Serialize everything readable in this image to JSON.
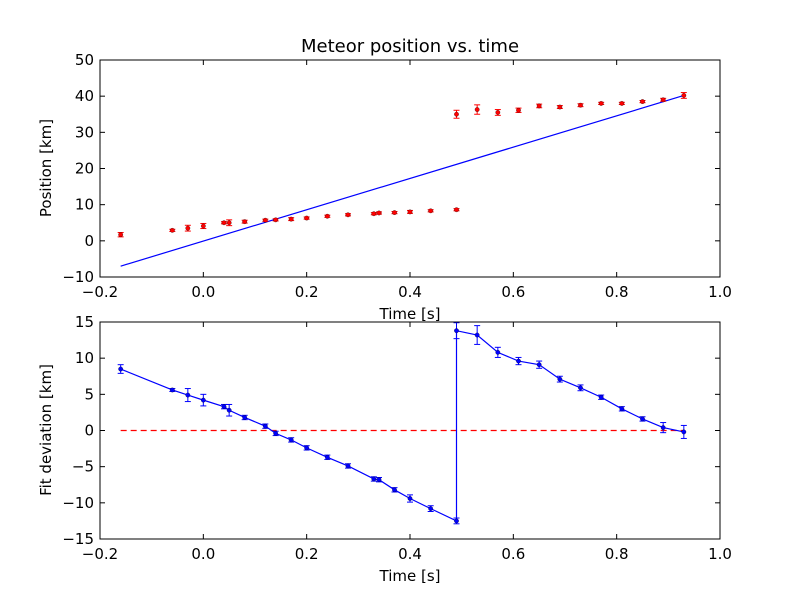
{
  "chart_data": [
    {
      "type": "scatter",
      "title": "Meteor position vs. time",
      "xlabel": "Time [s]",
      "ylabel": "Position [km]",
      "xlim": [
        -0.2,
        1.0
      ],
      "ylim": [
        -10,
        50
      ],
      "xticks": [
        -0.2,
        0.0,
        0.2,
        0.4,
        0.6,
        0.8,
        1.0
      ],
      "xtick_labels": [
        "−0.2",
        "0.0",
        "0.2",
        "0.4",
        "0.6",
        "0.8",
        "1.0"
      ],
      "yticks": [
        -10,
        0,
        10,
        20,
        30,
        40,
        50
      ],
      "ytick_labels": [
        "−10",
        "0",
        "10",
        "20",
        "30",
        "40",
        "50"
      ],
      "grid": false,
      "points": {
        "color": "#ff0000",
        "x": [
          -0.16,
          -0.06,
          -0.03,
          0.0,
          0.04,
          0.05,
          0.08,
          0.12,
          0.14,
          0.17,
          0.2,
          0.24,
          0.28,
          0.33,
          0.34,
          0.37,
          0.4,
          0.44,
          0.49,
          0.49,
          0.53,
          0.57,
          0.61,
          0.65,
          0.69,
          0.73,
          0.77,
          0.81,
          0.85,
          0.89,
          0.93
        ],
        "y": [
          1.7,
          2.9,
          3.5,
          4.1,
          5.0,
          5.0,
          5.3,
          5.7,
          5.8,
          6.0,
          6.3,
          6.8,
          7.2,
          7.5,
          7.7,
          7.8,
          8.0,
          8.3,
          8.6,
          35.0,
          36.3,
          35.5,
          36.1,
          37.3,
          37.0,
          37.5,
          38.0,
          38.0,
          38.5,
          39.0,
          40.2
        ],
        "err": [
          0.6,
          0.3,
          0.8,
          0.7,
          0.3,
          0.8,
          0.4,
          0.3,
          0.3,
          0.4,
          0.3,
          0.3,
          0.3,
          0.3,
          0.3,
          0.3,
          0.4,
          0.3,
          0.3,
          1.1,
          1.3,
          0.8,
          0.6,
          0.5,
          0.4,
          0.4,
          0.3,
          0.3,
          0.3,
          0.4,
          0.8
        ]
      },
      "fit_line": {
        "color": "#0000ff",
        "x": [
          -0.16,
          0.93
        ],
        "y": [
          -7.0,
          40.2
        ]
      }
    },
    {
      "type": "line",
      "xlabel": "Time [s]",
      "ylabel": "Fit deviation [km]",
      "xlim": [
        -0.2,
        1.0
      ],
      "ylim": [
        -15,
        15
      ],
      "xticks": [
        -0.2,
        0.0,
        0.2,
        0.4,
        0.6,
        0.8,
        1.0
      ],
      "xtick_labels": [
        "−0.2",
        "0.0",
        "0.2",
        "0.4",
        "0.6",
        "0.8",
        "1.0"
      ],
      "yticks": [
        -15,
        -10,
        -5,
        0,
        5,
        10,
        15
      ],
      "ytick_labels": [
        "−15",
        "−10",
        "−5",
        "0",
        "5",
        "10",
        "15"
      ],
      "grid": false,
      "series": {
        "color": "#0000ff",
        "x": [
          -0.16,
          -0.06,
          -0.03,
          0.0,
          0.04,
          0.05,
          0.08,
          0.12,
          0.14,
          0.17,
          0.2,
          0.24,
          0.28,
          0.33,
          0.34,
          0.37,
          0.4,
          0.44,
          0.49,
          0.49,
          0.53,
          0.57,
          0.61,
          0.65,
          0.69,
          0.73,
          0.77,
          0.81,
          0.85,
          0.89,
          0.93
        ],
        "y": [
          8.5,
          5.6,
          4.9,
          4.2,
          3.3,
          2.8,
          1.8,
          0.6,
          -0.4,
          -1.3,
          -2.4,
          -3.7,
          -4.9,
          -6.7,
          -6.8,
          -8.2,
          -9.4,
          -10.8,
          -12.5,
          13.8,
          13.2,
          10.8,
          9.6,
          9.1,
          7.1,
          5.9,
          4.6,
          3.0,
          1.6,
          0.4,
          -0.2
        ],
        "err": [
          0.6,
          0.2,
          0.9,
          0.8,
          0.3,
          0.8,
          0.3,
          0.3,
          0.3,
          0.3,
          0.3,
          0.3,
          0.3,
          0.3,
          0.3,
          0.3,
          0.5,
          0.4,
          0.4,
          1.1,
          1.3,
          0.7,
          0.5,
          0.5,
          0.4,
          0.4,
          0.3,
          0.3,
          0.3,
          0.7,
          0.9
        ]
      },
      "reference_line": {
        "color": "#ff0000",
        "style": "dashed",
        "y": 0,
        "x": [
          -0.16,
          0.93
        ]
      }
    }
  ]
}
